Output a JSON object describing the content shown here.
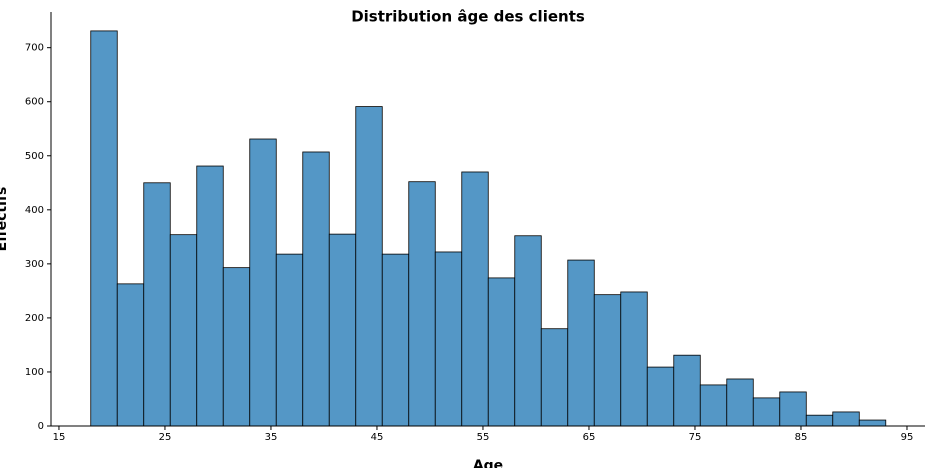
{
  "chart_data": {
    "type": "histogram",
    "title": "Distribution âge des clients",
    "x_label": "Age",
    "y_label": "Effectifs",
    "bins": [
      18,
      20.5,
      23,
      25.5,
      28,
      30.5,
      33,
      35.5,
      38,
      40.5,
      43,
      45.5,
      48,
      50.5,
      53,
      55.5,
      58,
      60.5,
      63,
      65.5,
      68,
      70.5,
      73,
      75.5,
      78,
      80.5,
      83,
      85.5,
      88,
      90.5,
      93
    ],
    "values": [
      731,
      263,
      450,
      354,
      481,
      293,
      531,
      318,
      507,
      355,
      591,
      318,
      452,
      322,
      470,
      274,
      352,
      180,
      307,
      243,
      248,
      109,
      131,
      76,
      87,
      52,
      63,
      20,
      26,
      11
    ],
    "color": "#5497c6",
    "edge_color": "#000000",
    "xlim": [
      14.25,
      96.7
    ],
    "ylim": [
      0,
      766
    ],
    "xticks": [
      15,
      25,
      35,
      45,
      55,
      65,
      75,
      85,
      95
    ],
    "yticks": [
      0,
      100,
      200,
      300,
      400,
      500,
      600,
      700
    ]
  }
}
